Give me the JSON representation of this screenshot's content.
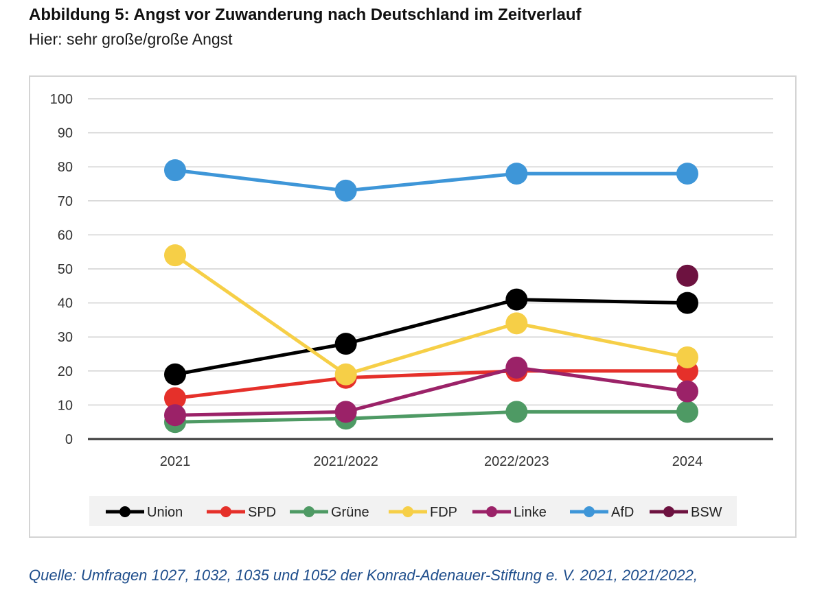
{
  "header": {
    "title": "Abbildung 5: Angst vor Zuwanderung nach Deutschland im Zeitverlauf",
    "subtitle": "Hier: sehr große/große Angst"
  },
  "source": "Quelle: Umfragen 1027, 1032, 1035 und 1052 der Konrad-Adenauer-Stiftung e. V. 2021, 2021/2022,",
  "chart_data": {
    "type": "line",
    "title": "",
    "xlabel": "",
    "ylabel": "",
    "categories": [
      "2021",
      "2021/2022",
      "2022/2023",
      "2024"
    ],
    "ylim": [
      0,
      100
    ],
    "yticks": [
      0,
      10,
      20,
      30,
      40,
      50,
      60,
      70,
      80,
      90,
      100
    ],
    "grid": true,
    "legend_position": "bottom",
    "series": [
      {
        "name": "Union",
        "color": "#000000",
        "values": [
          19,
          28,
          41,
          40
        ]
      },
      {
        "name": "SPD",
        "color": "#e5302a",
        "values": [
          12,
          18,
          20,
          20
        ]
      },
      {
        "name": "Grüne",
        "color": "#4e9a64",
        "values": [
          5,
          6,
          8,
          8
        ]
      },
      {
        "name": "FDP",
        "color": "#f6cf47",
        "values": [
          54,
          19,
          34,
          24
        ]
      },
      {
        "name": "Linke",
        "color": "#9b2268",
        "values": [
          7,
          8,
          21,
          14
        ]
      },
      {
        "name": "AfD",
        "color": "#3e96d8",
        "values": [
          79,
          73,
          78,
          78
        ]
      },
      {
        "name": "BSW",
        "color": "#6d1240",
        "values": [
          null,
          null,
          null,
          48
        ]
      }
    ]
  }
}
